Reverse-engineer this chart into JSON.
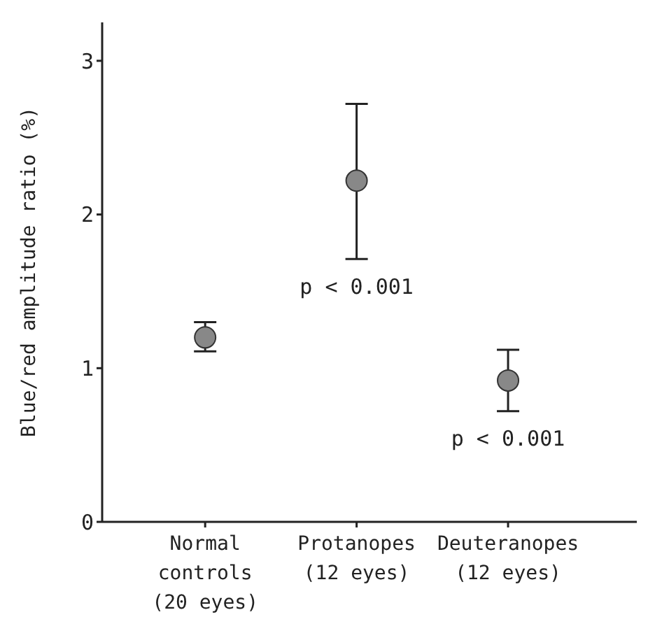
{
  "chart_data": {
    "type": "scatter",
    "ylabel": "Blue/red amplitude ratio (%)",
    "categories": [
      "Normal\ncontrols\n(20 eyes)",
      "Protanopes\n(12 eyes)",
      "Deuteranopes\n(12 eyes)"
    ],
    "values": [
      1.2,
      2.22,
      0.92
    ],
    "errors": [
      [
        1.11,
        1.3
      ],
      [
        1.71,
        2.72
      ],
      [
        0.72,
        1.12
      ]
    ],
    "color": "#888888",
    "marker": "circle",
    "ylim": [
      0,
      3.25
    ],
    "yticks": [
      0,
      1,
      2,
      3
    ],
    "grid": false,
    "legend": false,
    "annotations": [
      "p < 0.001",
      "p < 0.001"
    ]
  }
}
